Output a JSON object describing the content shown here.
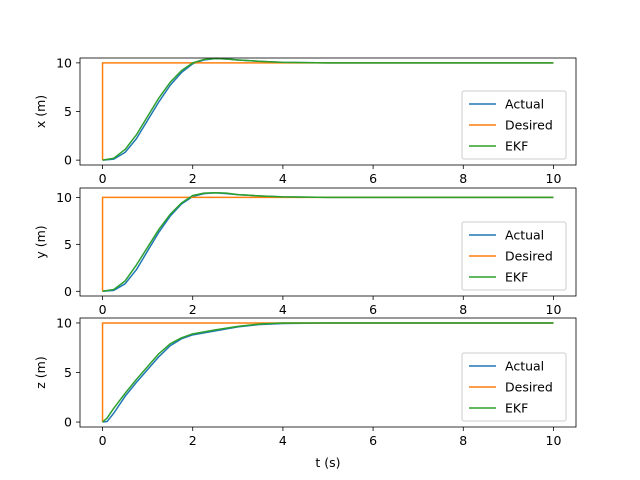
{
  "colors": {
    "actual": "#1f77b4",
    "desired": "#ff7f0e",
    "ekf": "#2ca02c"
  },
  "chart_data": [
    {
      "type": "line",
      "ylabel": "x (m)",
      "xlabel": "",
      "xlim": [
        -0.5,
        10.5
      ],
      "ylim": [
        -0.5,
        10.5
      ],
      "xticks": [
        "0",
        "2",
        "4",
        "6",
        "8",
        "10"
      ],
      "yticks": [
        "0",
        "5",
        "10"
      ],
      "legend": "lower right",
      "series": [
        {
          "name": "Actual",
          "color_key": "actual",
          "x": [
            0,
            0.25,
            0.5,
            0.75,
            1.0,
            1.25,
            1.5,
            1.75,
            2.0,
            2.25,
            2.5,
            2.75,
            3.0,
            3.5,
            4.0,
            5.0,
            6.0,
            7.0,
            8.0,
            9.0,
            10.0
          ],
          "y": [
            0,
            0.1,
            0.8,
            2.2,
            4.1,
            6.0,
            7.7,
            9.0,
            9.9,
            10.3,
            10.45,
            10.4,
            10.3,
            10.15,
            10.05,
            10.0,
            10.0,
            10.0,
            10.0,
            10.0,
            10.0
          ]
        },
        {
          "name": "Desired",
          "color_key": "desired",
          "x": [
            0,
            0,
            10.0
          ],
          "y": [
            0,
            10,
            10
          ]
        },
        {
          "name": "EKF",
          "color_key": "ekf",
          "x": [
            0,
            0.25,
            0.5,
            0.75,
            1.0,
            1.25,
            1.5,
            1.75,
            2.0,
            2.25,
            2.5,
            2.75,
            3.0,
            3.5,
            4.0,
            5.0,
            6.0,
            7.0,
            8.0,
            9.0,
            10.0
          ],
          "y": [
            0,
            0.2,
            1.1,
            2.6,
            4.5,
            6.4,
            8.0,
            9.2,
            10.0,
            10.35,
            10.45,
            10.4,
            10.3,
            10.15,
            10.05,
            10.0,
            10.0,
            10.0,
            10.0,
            10.0,
            10.0
          ]
        }
      ]
    },
    {
      "type": "line",
      "ylabel": "y (m)",
      "xlabel": "",
      "xlim": [
        -0.5,
        10.5
      ],
      "ylim": [
        -0.5,
        11.0
      ],
      "xticks": [
        "0",
        "2",
        "4",
        "6",
        "8",
        "10"
      ],
      "yticks": [
        "0",
        "5",
        "10"
      ],
      "legend": "lower right",
      "series": [
        {
          "name": "Actual",
          "color_key": "actual",
          "x": [
            0,
            0.25,
            0.5,
            0.75,
            1.0,
            1.25,
            1.5,
            1.75,
            2.0,
            2.25,
            2.5,
            2.75,
            3.0,
            3.5,
            4.0,
            5.0,
            6.0,
            7.0,
            8.0,
            9.0,
            10.0
          ],
          "y": [
            0,
            0.1,
            0.8,
            2.3,
            4.3,
            6.3,
            8.0,
            9.3,
            10.1,
            10.4,
            10.5,
            10.4,
            10.3,
            10.15,
            10.05,
            10.0,
            10.0,
            10.0,
            10.0,
            10.0,
            10.0
          ]
        },
        {
          "name": "Desired",
          "color_key": "desired",
          "x": [
            0,
            0,
            10.0
          ],
          "y": [
            0,
            10,
            10
          ]
        },
        {
          "name": "EKF",
          "color_key": "ekf",
          "x": [
            0,
            0.25,
            0.5,
            0.75,
            1.0,
            1.25,
            1.5,
            1.75,
            2.0,
            2.25,
            2.5,
            2.75,
            3.0,
            3.5,
            4.0,
            5.0,
            6.0,
            7.0,
            8.0,
            9.0,
            10.0
          ],
          "y": [
            0,
            0.2,
            1.1,
            2.8,
            4.7,
            6.6,
            8.2,
            9.4,
            10.2,
            10.45,
            10.5,
            10.45,
            10.3,
            10.15,
            10.05,
            10.0,
            10.0,
            10.0,
            10.0,
            10.0,
            10.0
          ]
        }
      ]
    },
    {
      "type": "line",
      "ylabel": "z (m)",
      "xlabel": "t (s)",
      "xlim": [
        -0.5,
        10.5
      ],
      "ylim": [
        -0.5,
        10.5
      ],
      "xticks": [
        "0",
        "2",
        "4",
        "6",
        "8",
        "10"
      ],
      "yticks": [
        "0",
        "5",
        "10"
      ],
      "legend": "lower right",
      "series": [
        {
          "name": "Actual",
          "color_key": "actual",
          "x": [
            0,
            0.1,
            0.25,
            0.5,
            0.75,
            1.0,
            1.25,
            1.5,
            1.75,
            2.0,
            2.5,
            3.0,
            3.5,
            4.0,
            5.0,
            6.0,
            7.0,
            8.0,
            9.0,
            10.0
          ],
          "y": [
            0,
            0.05,
            0.9,
            2.6,
            4.0,
            5.3,
            6.6,
            7.7,
            8.4,
            8.8,
            9.2,
            9.6,
            9.85,
            9.95,
            10.0,
            10.0,
            10.0,
            10.0,
            10.0,
            10.0
          ]
        },
        {
          "name": "Desired",
          "color_key": "desired",
          "x": [
            0,
            0,
            10.0
          ],
          "y": [
            0,
            10,
            10
          ]
        },
        {
          "name": "EKF",
          "color_key": "ekf",
          "x": [
            0,
            0.1,
            0.25,
            0.5,
            0.75,
            1.0,
            1.25,
            1.5,
            1.75,
            2.0,
            2.5,
            3.0,
            3.5,
            4.0,
            5.0,
            6.0,
            7.0,
            8.0,
            9.0,
            10.0
          ],
          "y": [
            0,
            0.4,
            1.4,
            2.9,
            4.3,
            5.6,
            6.9,
            7.9,
            8.5,
            8.9,
            9.3,
            9.65,
            9.9,
            10.0,
            10.0,
            10.0,
            10.0,
            10.0,
            10.0,
            10.0
          ]
        }
      ]
    }
  ]
}
